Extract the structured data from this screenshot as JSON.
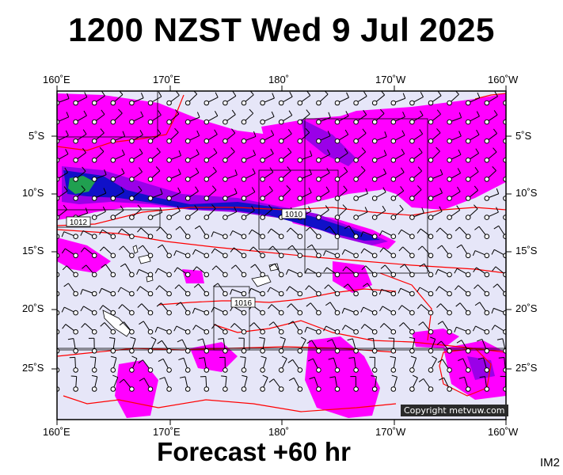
{
  "title": "1200 NZST Wed 9 Jul 2025",
  "footer": "Forecast +60 hr",
  "image_code": "IM2",
  "copyright": "Copyright metvuw.com",
  "longitude_labels": [
    "160˚E",
    "170˚E",
    "180˚",
    "170˚W",
    "160˚W"
  ],
  "latitude_labels": [
    "5˚S",
    "10˚S",
    "15˚S",
    "20˚S",
    "25˚S"
  ],
  "isobar_labels": [
    "1012",
    "1010",
    "1016"
  ],
  "colors": {
    "ocean": "#e6e6f8",
    "rain_light": "#ff00ff",
    "rain_medium": "#9a00e8",
    "rain_heavy": "#1010c8",
    "rain_extreme": "#20a050",
    "isobar": "#ff0000",
    "land": "#ffffff",
    "wind": "#000000"
  }
}
